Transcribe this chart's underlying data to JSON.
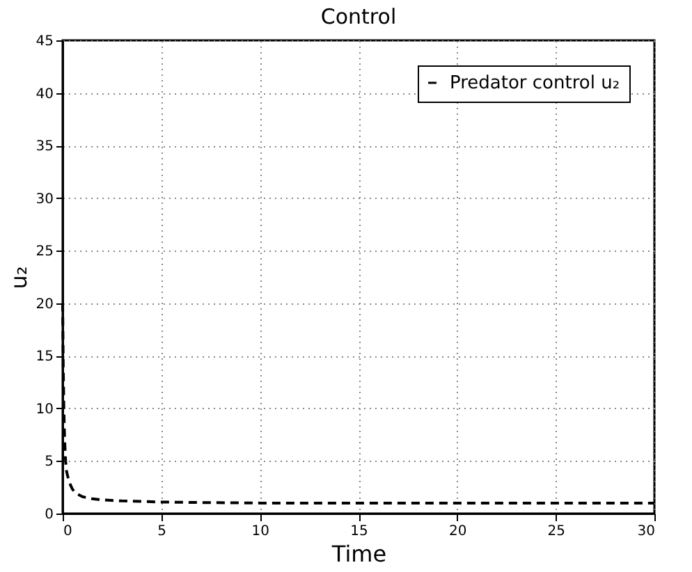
{
  "chart_data": {
    "type": "line",
    "title": "Control",
    "xlabel": "Time",
    "ylabel": "u₂",
    "x": [
      0,
      0.03,
      0.06,
      0.1,
      0.15,
      0.2,
      0.3,
      0.4,
      0.5,
      0.7,
      1,
      1.5,
      2,
      3,
      4,
      5,
      7,
      10,
      15,
      20,
      25,
      30
    ],
    "series": [
      {
        "name": "Predator control u₂",
        "color": "#000000",
        "line_style": "dashed",
        "values": [
          20,
          14,
          10,
          7,
          5,
          4,
          3.2,
          2.7,
          2.3,
          1.9,
          1.6,
          1.4,
          1.3,
          1.2,
          1.15,
          1.1,
          1.05,
          1.0,
          1.0,
          1.0,
          1.0,
          1.0
        ]
      }
    ],
    "xlim": [
      0,
      30
    ],
    "xticks": [
      0,
      5,
      10,
      15,
      20,
      25,
      30
    ],
    "ylim": [
      0,
      45
    ],
    "yticks": [
      0,
      5,
      10,
      15,
      20,
      25,
      30,
      35,
      40,
      45
    ],
    "grid": true,
    "legend": "top right",
    "marker": "none"
  }
}
